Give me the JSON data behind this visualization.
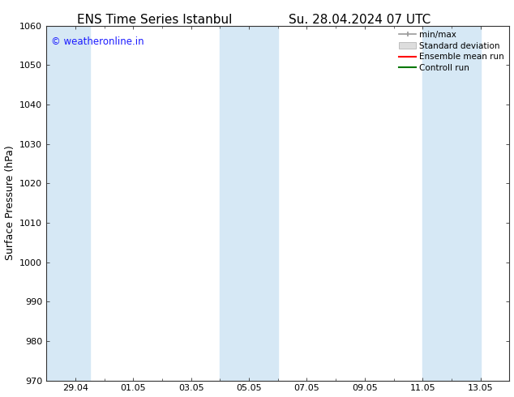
{
  "title_left": "ENS Time Series Istanbul",
  "title_right": "Su. 28.04.2024 07 UTC",
  "ylabel": "Surface Pressure (hPa)",
  "ylim": [
    970,
    1060
  ],
  "yticks": [
    970,
    980,
    990,
    1000,
    1010,
    1020,
    1030,
    1040,
    1050,
    1060
  ],
  "xtick_labels": [
    "29.04",
    "01.05",
    "03.05",
    "05.05",
    "07.05",
    "09.05",
    "11.05",
    "13.05"
  ],
  "shaded_regions": [
    {
      "xstart_days": 0.0,
      "xend_days": 1.5,
      "color": "#d6e8f5"
    },
    {
      "xstart_days": 6.0,
      "xend_days": 8.0,
      "color": "#d6e8f5"
    },
    {
      "xstart_days": 13.0,
      "xend_days": 15.0,
      "color": "#d6e8f5"
    }
  ],
  "xlim_days": [
    0,
    16
  ],
  "xtick_days": [
    1,
    3,
    5,
    7,
    9,
    11,
    13,
    15
  ],
  "watermark": "© weatheronline.in",
  "watermark_color": "#1a1aff",
  "bg_color": "#ffffff",
  "legend_items": [
    {
      "label": "min/max",
      "color": "#999999",
      "type": "errbar"
    },
    {
      "label": "Standard deviation",
      "color": "#cccccc",
      "type": "box"
    },
    {
      "label": "Ensemble mean run",
      "color": "#ff0000",
      "type": "line"
    },
    {
      "label": "Controll run",
      "color": "#007700",
      "type": "line"
    }
  ],
  "title_fontsize": 11,
  "axis_label_fontsize": 9,
  "tick_fontsize": 8,
  "legend_fontsize": 7.5
}
